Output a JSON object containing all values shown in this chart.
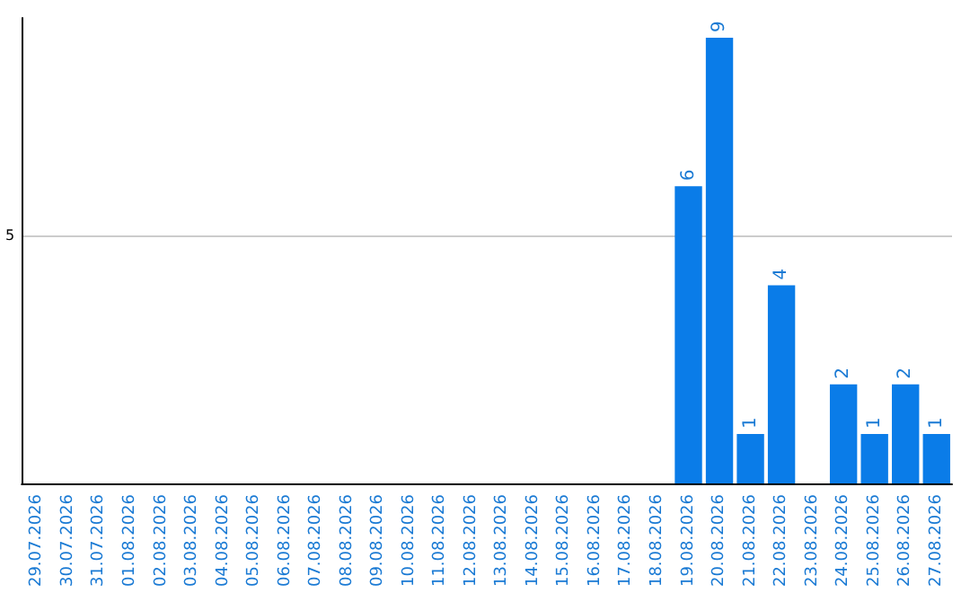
{
  "chart_data": {
    "type": "bar",
    "categories": [
      "29.07.2026",
      "30.07.2026",
      "31.07.2026",
      "01.08.2026",
      "02.08.2026",
      "03.08.2026",
      "04.08.2026",
      "05.08.2026",
      "06.08.2026",
      "07.08.2026",
      "08.08.2026",
      "09.08.2026",
      "10.08.2026",
      "11.08.2026",
      "12.08.2026",
      "13.08.2026",
      "14.08.2026",
      "15.08.2026",
      "16.08.2026",
      "17.08.2026",
      "18.08.2026",
      "19.08.2026",
      "20.08.2026",
      "21.08.2026",
      "22.08.2026",
      "23.08.2026",
      "24.08.2026",
      "25.08.2026",
      "26.08.2026",
      "27.08.2026"
    ],
    "values": [
      null,
      null,
      null,
      null,
      null,
      null,
      null,
      null,
      null,
      null,
      null,
      null,
      null,
      null,
      null,
      null,
      null,
      null,
      null,
      null,
      null,
      6,
      9,
      1,
      4,
      null,
      2,
      1,
      2,
      1
    ],
    "value_labels": [
      null,
      null,
      null,
      null,
      null,
      null,
      null,
      null,
      null,
      null,
      null,
      null,
      null,
      null,
      null,
      null,
      null,
      null,
      null,
      null,
      null,
      "6",
      "9",
      "1",
      "4",
      null,
      "2",
      "1",
      "2",
      "1"
    ],
    "color": "#0a7ce8",
    "ylim": [
      0,
      9.4
    ],
    "yticks": [
      {
        "value": 0,
        "label": null
      },
      5
    ],
    "grid": "y"
  }
}
